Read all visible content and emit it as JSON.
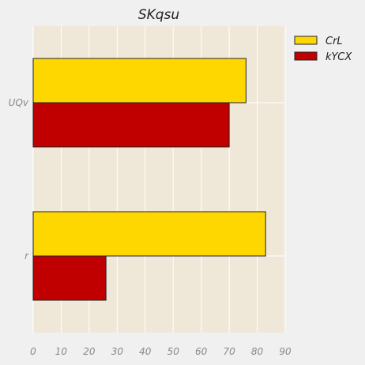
{
  "chart_data": {
    "type": "bar",
    "orientation": "horizontal",
    "title": "SKqsu",
    "xlabel": "",
    "ylabel": "",
    "categories": [
      "UQv",
      "r"
    ],
    "series": [
      {
        "name": "CrL",
        "values": [
          76,
          83
        ],
        "color": "#ffd700"
      },
      {
        "name": "kYCX",
        "values": [
          70,
          26
        ],
        "color": "#c00000"
      }
    ],
    "xlim": [
      0,
      90
    ],
    "xticks": [
      0,
      10,
      20,
      30,
      40,
      50,
      60,
      70,
      80,
      90
    ],
    "grid": true,
    "legend_position": "top-right",
    "colors": {
      "plot_background": "#efe8d8",
      "figure_background": "#f0f0f0",
      "grid": "#ffffff",
      "bar_edge": "#222222"
    }
  }
}
